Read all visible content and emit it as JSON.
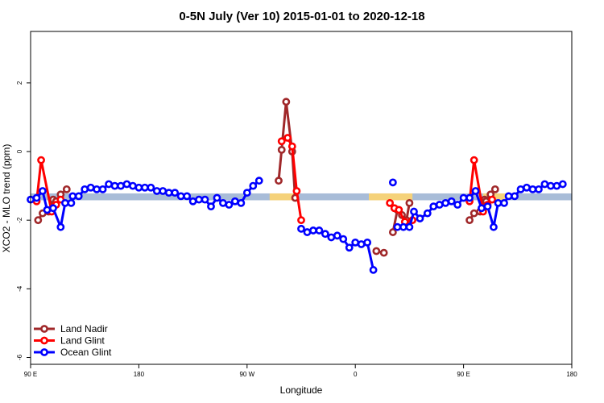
{
  "chart_data": {
    "type": "line",
    "title": "0-5N July (Ver 10)   2015-01-01 to 2020-12-18",
    "xlabel": "Longitude",
    "ylabel": "XCO2 - MLO trend (ppm)",
    "xlim": [
      -270,
      -90
    ],
    "ylim": [
      -6.2,
      3.5
    ],
    "xticks": [
      {
        "value": -270,
        "label": "90 E"
      },
      {
        "value": -234,
        "label": "180"
      },
      {
        "value": -198,
        "label": "90 W"
      },
      {
        "value": -162,
        "label": "0"
      },
      {
        "value": -126,
        "label": "90 E"
      },
      {
        "value": -90,
        "label": "180"
      }
    ],
    "yticks": [
      {
        "value": -6,
        "label": "-6"
      },
      {
        "value": -4,
        "label": "-4"
      },
      {
        "value": -2,
        "label": "-2"
      },
      {
        "value": 0,
        "label": "0"
      },
      {
        "value": 2,
        "label": "2"
      }
    ],
    "legend_position": "bottom-left",
    "background_band": {
      "y_range": [
        -1.42,
        -1.22
      ],
      "color": "#a8bcd8",
      "land_color": "#f5d27a",
      "land_segments": [
        [
          -190.5,
          -182.5
        ],
        [
          -157.5,
          -143
        ],
        [
          -119.5,
          -112
        ]
      ]
    },
    "series": [
      {
        "name": "Land Nadir",
        "color": "#a0282a",
        "segments": [
          [
            [
              -267.5,
              -2.0
            ],
            [
              -266,
              -1.8
            ],
            [
              -264,
              -1.75
            ],
            [
              -262.5,
              -1.4
            ],
            [
              -261.5,
              -1.45
            ],
            [
              -260,
              -1.25
            ],
            [
              -258,
              -1.1
            ]
          ],
          [
            [
              -187.5,
              -0.85
            ],
            [
              -186.5,
              0.05
            ],
            [
              -185,
              1.45
            ],
            [
              -183,
              0.0
            ],
            [
              -182,
              -1.35
            ]
          ],
          [
            [
              -155,
              -2.9
            ],
            [
              -152.5,
              -2.95
            ]
          ],
          [
            [
              -149.5,
              -2.35
            ],
            [
              -148,
              -1.7
            ],
            [
              -146.5,
              -1.85
            ],
            [
              -145,
              -2.0
            ],
            [
              -144,
              -1.5
            ]
          ],
          [
            [
              -124,
              -2.0
            ],
            [
              -122.5,
              -1.8
            ],
            [
              -120.5,
              -1.75
            ],
            [
              -119,
              -1.4
            ],
            [
              -118.5,
              -1.45
            ],
            [
              -117,
              -1.25
            ],
            [
              -115.5,
              -1.1
            ]
          ]
        ]
      },
      {
        "name": "Land Glint",
        "color": "#ff0000",
        "segments": [
          [
            [
              -268,
              -1.45
            ],
            [
              -266.5,
              -0.25
            ],
            [
              -263,
              -1.75
            ],
            [
              -261.5,
              -1.55
            ],
            [
              -260,
              -1.4
            ]
          ],
          [
            [
              -186.5,
              0.3
            ],
            [
              -184.5,
              0.4
            ],
            [
              -183,
              0.15
            ],
            [
              -181.5,
              -1.15
            ],
            [
              -180,
              -2.0
            ]
          ],
          [
            [
              -150.5,
              -1.5
            ],
            [
              -149,
              -1.65
            ],
            [
              -147.5,
              -1.7
            ],
            [
              -145.5,
              -2.05
            ],
            [
              -143,
              -2.0
            ]
          ],
          [
            [
              -124,
              -1.45
            ],
            [
              -122.5,
              -0.25
            ],
            [
              -119.5,
              -1.75
            ],
            [
              -118,
              -1.55
            ],
            [
              -116.5,
              -1.4
            ]
          ]
        ]
      },
      {
        "name": "Ocean Glint",
        "color": "#0000ff",
        "segments": [
          [
            [
              -270,
              -1.4
            ],
            [
              -268,
              -1.35
            ],
            [
              -266,
              -1.15
            ],
            [
              -264.5,
              -1.7
            ],
            [
              -262.5,
              -1.65
            ],
            [
              -260,
              -2.2
            ],
            [
              -258.5,
              -1.5
            ],
            [
              -256.5,
              -1.5
            ],
            [
              -256,
              -1.3
            ],
            [
              -254,
              -1.3
            ],
            [
              -252,
              -1.1
            ],
            [
              -250,
              -1.05
            ],
            [
              -248,
              -1.1
            ],
            [
              -246,
              -1.1
            ],
            [
              -244,
              -0.95
            ],
            [
              -242,
              -1.0
            ],
            [
              -240,
              -1.0
            ],
            [
              -238,
              -0.95
            ],
            [
              -236,
              -1.0
            ],
            [
              -234,
              -1.05
            ],
            [
              -232,
              -1.05
            ],
            [
              -230,
              -1.05
            ],
            [
              -228,
              -1.15
            ],
            [
              -226,
              -1.15
            ],
            [
              -224,
              -1.2
            ],
            [
              -222,
              -1.2
            ],
            [
              -220,
              -1.3
            ],
            [
              -218,
              -1.3
            ],
            [
              -216,
              -1.45
            ],
            [
              -214,
              -1.4
            ],
            [
              -212,
              -1.4
            ],
            [
              -210,
              -1.6
            ],
            [
              -208,
              -1.35
            ],
            [
              -206,
              -1.5
            ],
            [
              -204,
              -1.55
            ],
            [
              -202,
              -1.45
            ],
            [
              -200,
              -1.5
            ],
            [
              -198,
              -1.2
            ],
            [
              -196,
              -1.0
            ],
            [
              -194,
              -0.85
            ]
          ],
          [
            [
              -180,
              -2.25
            ],
            [
              -178,
              -2.35
            ],
            [
              -176,
              -2.3
            ],
            [
              -174,
              -2.3
            ],
            [
              -172,
              -2.4
            ],
            [
              -170,
              -2.5
            ],
            [
              -168,
              -2.45
            ],
            [
              -166,
              -2.55
            ],
            [
              -164,
              -2.8
            ],
            [
              -162,
              -2.65
            ],
            [
              -160,
              -2.7
            ],
            [
              -158,
              -2.65
            ],
            [
              -156,
              -3.45
            ]
          ],
          [
            [
              -149.5,
              -0.9
            ]
          ],
          [
            [
              -148,
              -2.2
            ],
            [
              -146,
              -2.2
            ],
            [
              -144,
              -2.2
            ],
            [
              -142.5,
              -1.75
            ],
            [
              -140.5,
              -1.95
            ],
            [
              -138,
              -1.8
            ],
            [
              -136,
              -1.6
            ],
            [
              -134,
              -1.55
            ],
            [
              -132,
              -1.5
            ],
            [
              -130,
              -1.45
            ],
            [
              -128,
              -1.55
            ],
            [
              -126,
              -1.35
            ],
            [
              -124,
              -1.35
            ],
            [
              -122,
              -1.15
            ],
            [
              -120,
              -1.65
            ],
            [
              -118,
              -1.6
            ],
            [
              -116,
              -2.2
            ],
            [
              -114.5,
              -1.5
            ],
            [
              -112.5,
              -1.5
            ],
            [
              -111,
              -1.3
            ],
            [
              -109,
              -1.3
            ],
            [
              -107,
              -1.1
            ],
            [
              -105,
              -1.05
            ],
            [
              -103,
              -1.1
            ],
            [
              -101,
              -1.1
            ],
            [
              -99,
              -0.95
            ],
            [
              -97,
              -1.0
            ],
            [
              -95,
              -1.0
            ],
            [
              -93,
              -0.95
            ]
          ]
        ]
      }
    ]
  }
}
